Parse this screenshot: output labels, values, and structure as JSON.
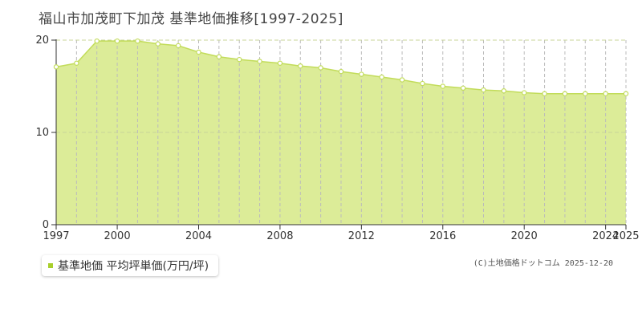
{
  "colors": {
    "fill": "#dcec98",
    "line": "#c2dc5a",
    "marker_fill": "#ffffff",
    "grid_vertical": "#bbbbbb",
    "grid_horizontal": "#c8d49a",
    "legend_swatch": "#a8cf2c"
  },
  "chart_data": {
    "type": "area",
    "title": "福山市加茂町下加茂 基準地価推移[1997-2025]",
    "xlabel": "",
    "ylabel": "",
    "xlim": [
      1997,
      2025
    ],
    "ylim": [
      0,
      20
    ],
    "yticks": [
      "0",
      "10",
      "20"
    ],
    "xticks": [
      "1997",
      "2000",
      "2004",
      "2008",
      "2012",
      "2016",
      "2020",
      "2024",
      "2025"
    ],
    "grid": true,
    "legend_position": "bottom-left",
    "x": [
      1997,
      1998,
      1999,
      2000,
      2001,
      2002,
      2003,
      2004,
      2005,
      2006,
      2007,
      2008,
      2009,
      2010,
      2011,
      2012,
      2013,
      2014,
      2015,
      2016,
      2017,
      2018,
      2019,
      2020,
      2021,
      2022,
      2023,
      2024,
      2025
    ],
    "series": [
      {
        "name": "基準地価 平均坪単価(万円/坪)",
        "values": [
          17.1,
          17.5,
          19.9,
          19.9,
          19.9,
          19.6,
          19.4,
          18.7,
          18.2,
          17.9,
          17.7,
          17.5,
          17.2,
          17.0,
          16.6,
          16.3,
          16.0,
          15.7,
          15.3,
          15.0,
          14.8,
          14.6,
          14.5,
          14.3,
          14.2,
          14.2,
          14.2,
          14.2,
          14.2
        ]
      }
    ]
  },
  "legend": {
    "label": "基準地価 平均坪単価(万円/坪)"
  },
  "footer": {
    "copyright": "(C)土地価格ドットコム 2025-12-20"
  }
}
